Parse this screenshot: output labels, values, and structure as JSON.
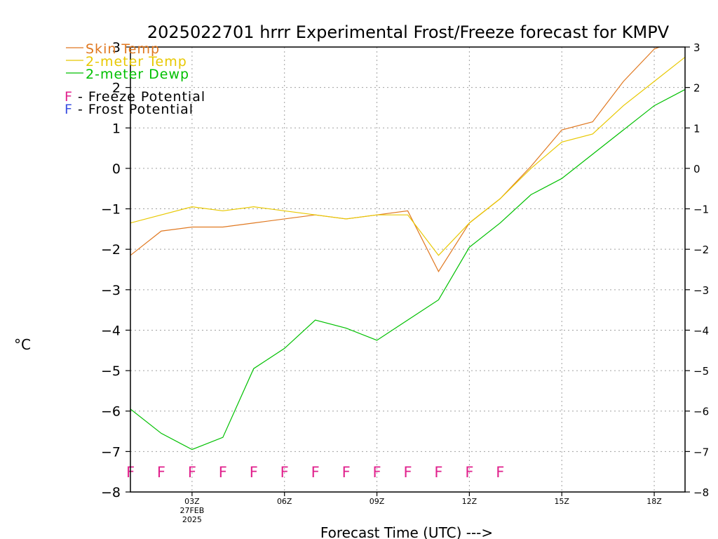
{
  "chart_data": {
    "type": "line",
    "title": "2025022701 hrrr Experimental Frost/Freeze forecast for KMPV",
    "xlabel": "Forecast Time (UTC) --->",
    "ylabel": "°C",
    "ylim": [
      -8,
      3
    ],
    "yticks": [
      3,
      2,
      1,
      0,
      -1,
      -2,
      -3,
      -4,
      -5,
      -6,
      -7,
      -8
    ],
    "ytick_labels": [
      "3",
      "2",
      "1",
      "0",
      "−1",
      "−2",
      "−3",
      "−4",
      "−5",
      "−6",
      "−7",
      "−8"
    ],
    "x_hours": [
      1,
      2,
      3,
      4,
      5,
      6,
      7,
      8,
      9,
      10,
      11,
      12,
      13,
      14,
      15,
      16,
      17,
      18,
      19
    ],
    "x_range": [
      1,
      19
    ],
    "xticks": [
      {
        "hour": 3,
        "label": "03Z",
        "sub": [
          "27FEB",
          "2025"
        ]
      },
      {
        "hour": 6,
        "label": "06Z",
        "sub": []
      },
      {
        "hour": 9,
        "label": "09Z",
        "sub": []
      },
      {
        "hour": 12,
        "label": "12Z",
        "sub": []
      },
      {
        "hour": 15,
        "label": "15Z",
        "sub": []
      },
      {
        "hour": 18,
        "label": "18Z",
        "sub": []
      }
    ],
    "grid": true,
    "series": [
      {
        "name": "Skin Temp",
        "color": "#e07820",
        "values": [
          -2.15,
          -1.55,
          -1.45,
          -1.45,
          -1.35,
          -1.25,
          -1.15,
          -1.25,
          -1.15,
          -1.05,
          -2.55,
          -1.35,
          -0.75,
          0.05,
          0.95,
          1.15,
          2.15,
          2.95,
          3.25
        ]
      },
      {
        "name": "2-meter Temp",
        "color": "#e8c800",
        "values": [
          -1.35,
          -1.15,
          -0.95,
          -1.05,
          -0.95,
          -1.05,
          -1.15,
          -1.25,
          -1.15,
          -1.15,
          -2.15,
          -1.35,
          -0.75,
          0.0,
          0.65,
          0.85,
          1.55,
          2.15,
          2.75
        ]
      },
      {
        "name": "2-meter Dewp",
        "color": "#00c000",
        "values": [
          -5.95,
          -6.55,
          -6.95,
          -6.65,
          -4.95,
          -4.45,
          -3.75,
          -3.95,
          -4.25,
          -3.75,
          -3.25,
          -1.95,
          -1.35,
          -0.65,
          -0.25,
          0.35,
          0.95,
          1.55,
          1.95
        ]
      }
    ],
    "flags": {
      "freeze_label": "F - Freeze Potential",
      "frost_label": "F - Frost Potential",
      "freeze_color": "#e0208c",
      "frost_color": "#3c50e0",
      "freeze_hours": [
        1,
        2,
        3,
        4,
        5,
        6,
        7,
        8,
        9,
        10,
        11,
        12,
        13
      ],
      "frost_hours": [],
      "freeze_value": -7.5
    }
  }
}
